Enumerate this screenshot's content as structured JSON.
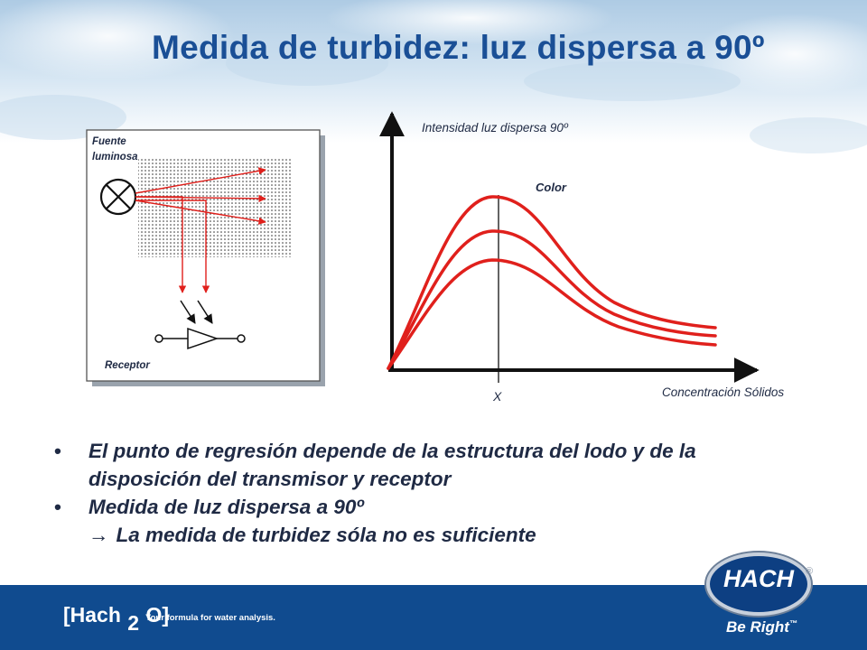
{
  "slide": {
    "title": "Medida de turbidez: luz dispersa a 90º"
  },
  "device": {
    "source_label_1": "Fuente",
    "source_label_2": "luminosa",
    "receptor_label": "Receptor"
  },
  "plot": {
    "ylabel": "Intensidad luz dispersa 90º",
    "xlabel": "Concentración Sólidos",
    "curve_label": "Color",
    "marker_label": "X"
  },
  "bullets": [
    {
      "line1": "El punto de regresión depende de la estructura del  lodo y de la",
      "line2": "disposición del transmisor y receptor"
    },
    {
      "line1": "Medida de luz dispersa a 90º",
      "arrow": "→",
      "line2": "La medida de turbidez sóla no es suficiente"
    }
  ],
  "footer": {
    "brand_left": "[Hach",
    "brand_sub": "2",
    "brand_right": "O]",
    "tagline": "Your formula for water analysis.",
    "logo": "HACH",
    "registered": "®",
    "slogan": "Be Right",
    "slogan_tm": "™"
  },
  "colors": {
    "title": "#1a4f96",
    "curve": "#e0201c",
    "footer_bg": "#104b8f",
    "bullet_text": "#1f2a44"
  },
  "icons": [
    "lamp-icon",
    "receptor-diode-icon"
  ]
}
